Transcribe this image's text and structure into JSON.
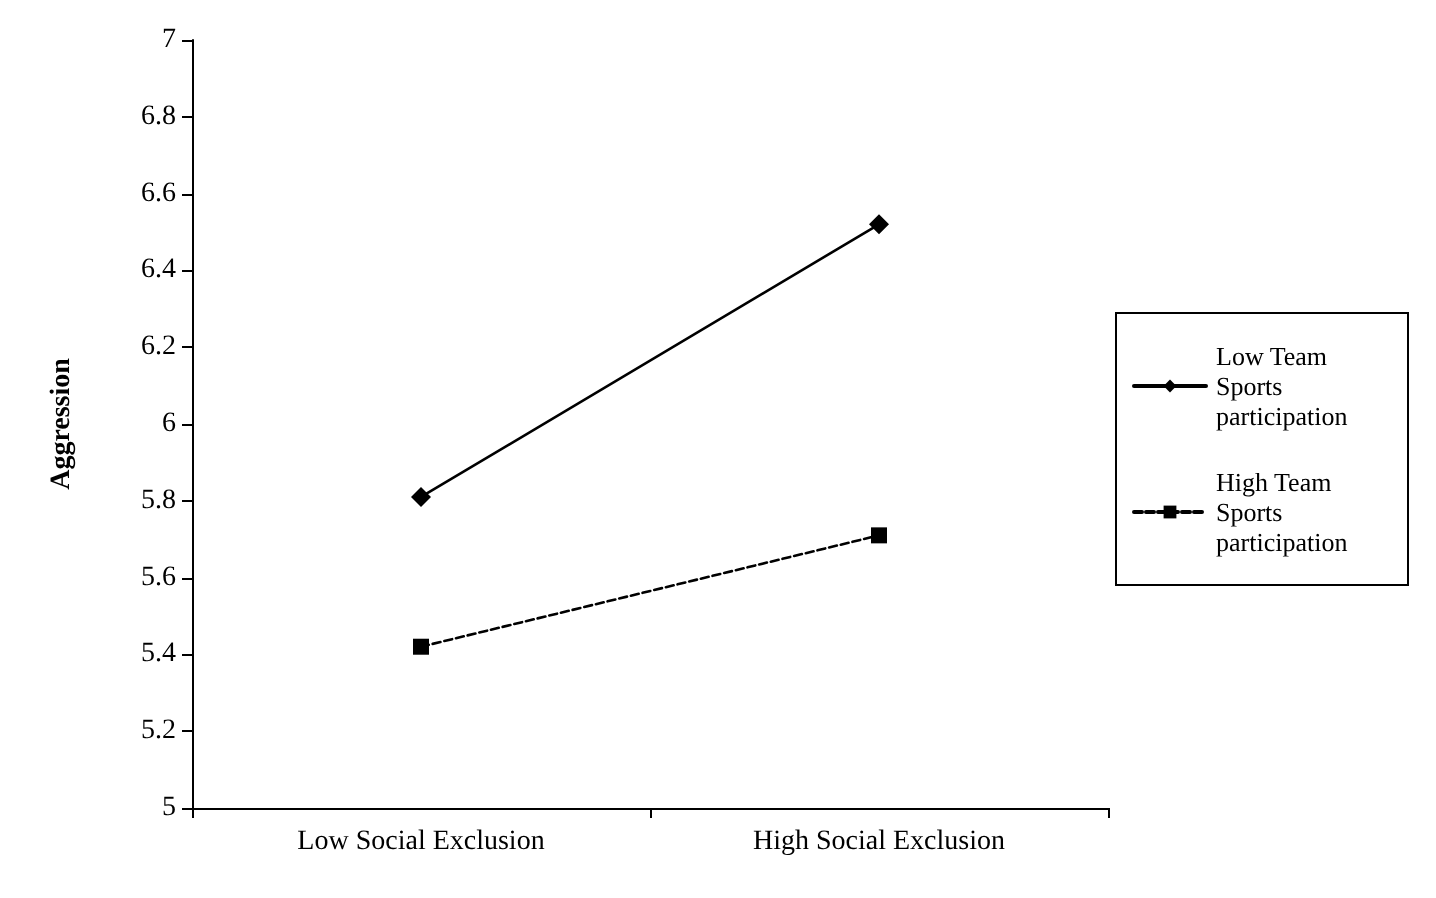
{
  "chart_data": {
    "type": "line",
    "ylabel": "Aggression",
    "categories": [
      "Low Social Exclusion",
      "High Social Exclusion"
    ],
    "series": [
      {
        "name": "Low Team Sports participation",
        "color": "#000000",
        "values": [
          5.81,
          6.52
        ],
        "marker": "diamond",
        "line_style": "solid"
      },
      {
        "name": "High Team Sports participation",
        "color": "#000000",
        "values": [
          5.42,
          5.71
        ],
        "marker": "square",
        "line_style": "dashed"
      }
    ],
    "ylim": [
      5,
      7
    ],
    "yticks": [
      5,
      5.2,
      5.4,
      5.6,
      5.8,
      6,
      6.2,
      6.4,
      6.6,
      6.8,
      7
    ],
    "grid": false,
    "legend": "right"
  }
}
